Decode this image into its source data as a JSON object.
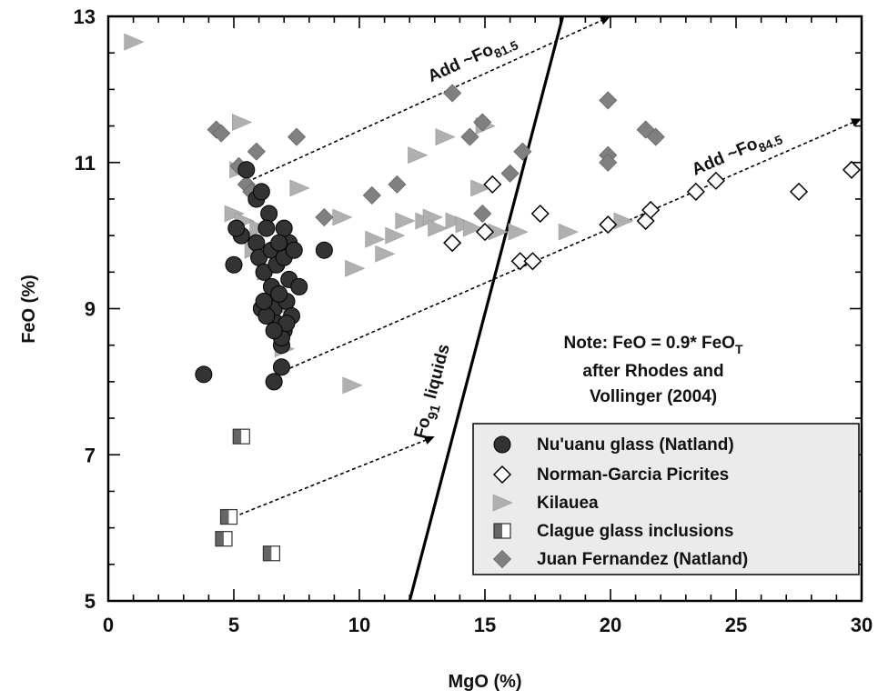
{
  "chart_data": {
    "type": "scatter",
    "xlabel": "MgO (%)",
    "ylabel": "FeO (%)",
    "xlim": [
      0,
      30
    ],
    "ylim": [
      5,
      13
    ],
    "x_major_ticks": [
      0,
      5,
      10,
      15,
      20,
      25,
      30
    ],
    "y_major_ticks": [
      5,
      7,
      9,
      11,
      13
    ],
    "grid": false,
    "legend_position": "bottom-right",
    "colors": {
      "nuuanu": "#333333",
      "kilauea": "#b0b0b0",
      "juan": "#808080",
      "clague": "#666666",
      "legend_bg": "#ebebeb"
    },
    "series": [
      {
        "name": "Nu'uanu glass (Natland)",
        "marker": "circle",
        "points": [
          [
            3.8,
            8.1
          ],
          [
            5.0,
            9.6
          ],
          [
            5.3,
            10.0
          ],
          [
            5.5,
            10.9
          ],
          [
            5.9,
            10.5
          ],
          [
            6.1,
            10.6
          ],
          [
            5.9,
            9.9
          ],
          [
            6.0,
            9.7
          ],
          [
            6.2,
            9.5
          ],
          [
            6.4,
            10.3
          ],
          [
            6.3,
            10.1
          ],
          [
            6.5,
            9.8
          ],
          [
            6.7,
            9.6
          ],
          [
            6.5,
            9.3
          ],
          [
            6.6,
            9.0
          ],
          [
            6.7,
            8.8
          ],
          [
            6.9,
            8.5
          ],
          [
            7.0,
            9.7
          ],
          [
            7.2,
            9.9
          ],
          [
            7.1,
            9.1
          ],
          [
            7.3,
            8.9
          ],
          [
            7.0,
            8.7
          ],
          [
            7.2,
            9.4
          ],
          [
            6.8,
            9.2
          ],
          [
            7.4,
            9.8
          ],
          [
            6.9,
            8.6
          ],
          [
            7.1,
            8.8
          ],
          [
            6.6,
            8.0
          ],
          [
            6.9,
            8.2
          ],
          [
            7.6,
            9.3
          ],
          [
            8.6,
            9.8
          ],
          [
            6.1,
            9.0
          ],
          [
            6.3,
            8.9
          ],
          [
            6.6,
            8.7
          ],
          [
            7.0,
            10.1
          ],
          [
            6.8,
            9.9
          ],
          [
            5.1,
            10.1
          ],
          [
            6.2,
            9.1
          ]
        ]
      },
      {
        "name": "Norman-Garcia Picrites",
        "marker": "diamond-open",
        "points": [
          [
            13.7,
            9.9
          ],
          [
            15.0,
            10.05
          ],
          [
            15.3,
            10.7
          ],
          [
            16.4,
            9.65
          ],
          [
            16.9,
            9.65
          ],
          [
            17.2,
            10.3
          ],
          [
            19.9,
            10.15
          ],
          [
            21.4,
            10.2
          ],
          [
            21.6,
            10.35
          ],
          [
            23.4,
            10.6
          ],
          [
            24.2,
            10.75
          ],
          [
            27.5,
            10.6
          ],
          [
            29.6,
            10.9
          ]
        ]
      },
      {
        "name": "Kilauea",
        "marker": "triangle-right",
        "points": [
          [
            1.0,
            12.65
          ],
          [
            5.3,
            11.55
          ],
          [
            5.2,
            10.9
          ],
          [
            5.0,
            10.3
          ],
          [
            5.4,
            10.2
          ],
          [
            5.6,
            10.0
          ],
          [
            5.8,
            9.8
          ],
          [
            6.0,
            10.1
          ],
          [
            6.3,
            9.5
          ],
          [
            6.6,
            9.3
          ],
          [
            6.9,
            9.0
          ],
          [
            7.0,
            8.45
          ],
          [
            7.6,
            10.65
          ],
          [
            9.3,
            10.25
          ],
          [
            9.8,
            9.55
          ],
          [
            9.7,
            7.95
          ],
          [
            10.6,
            9.95
          ],
          [
            11.0,
            9.75
          ],
          [
            11.4,
            10.0
          ],
          [
            11.8,
            10.2
          ],
          [
            12.3,
            11.1
          ],
          [
            12.6,
            10.2
          ],
          [
            12.9,
            10.25
          ],
          [
            13.1,
            10.1
          ],
          [
            13.4,
            11.35
          ],
          [
            13.8,
            10.2
          ],
          [
            14.2,
            10.15
          ],
          [
            14.5,
            10.1
          ],
          [
            14.8,
            10.65
          ],
          [
            15.0,
            11.5
          ],
          [
            15.5,
            10.05
          ],
          [
            16.3,
            10.05
          ],
          [
            18.3,
            10.05
          ],
          [
            20.5,
            10.2
          ]
        ]
      },
      {
        "name": "Clague glass inclusions",
        "marker": "square-half",
        "points": [
          [
            5.3,
            7.25
          ],
          [
            4.8,
            6.15
          ],
          [
            4.6,
            5.85
          ],
          [
            6.5,
            5.65
          ]
        ]
      },
      {
        "name": "Juan Fernandez (Natland)",
        "marker": "diamond",
        "points": [
          [
            4.3,
            11.45
          ],
          [
            4.5,
            11.4
          ],
          [
            5.2,
            10.95
          ],
          [
            5.5,
            10.7
          ],
          [
            5.7,
            10.6
          ],
          [
            5.9,
            11.15
          ],
          [
            7.5,
            11.35
          ],
          [
            8.6,
            10.25
          ],
          [
            10.5,
            10.55
          ],
          [
            11.5,
            10.7
          ],
          [
            13.7,
            11.95
          ],
          [
            14.4,
            11.35
          ],
          [
            14.9,
            11.55
          ],
          [
            14.9,
            10.3
          ],
          [
            16.0,
            10.85
          ],
          [
            16.5,
            11.15
          ],
          [
            19.9,
            11.85
          ],
          [
            19.9,
            11.1
          ],
          [
            19.9,
            11.0
          ],
          [
            21.4,
            11.45
          ],
          [
            21.8,
            11.35
          ]
        ]
      }
    ],
    "lines": [
      {
        "label_main": "Fo",
        "label_sub": "91",
        "label_rest": " liquids",
        "points": [
          [
            12.0,
            5.0
          ],
          [
            18.1,
            13.0
          ]
        ]
      }
    ],
    "arrows": [
      {
        "label_main": "Add ~Fo",
        "label_sub": "81.5",
        "from": [
          5.3,
          10.7
        ],
        "to": [
          20.0,
          13.0
        ]
      },
      {
        "label_main": "Add ~Fo",
        "label_sub": "84.5",
        "from": [
          7.0,
          8.15
        ],
        "to": [
          30.0,
          11.6
        ]
      },
      {
        "from": [
          5.0,
          6.15
        ],
        "to": [
          13.0,
          7.25
        ]
      }
    ],
    "note_lines": [
      "Note: FeO = 0.9* FeO",
      "after Rhodes and",
      "Vollinger (2004)"
    ],
    "note_sub": "T"
  }
}
